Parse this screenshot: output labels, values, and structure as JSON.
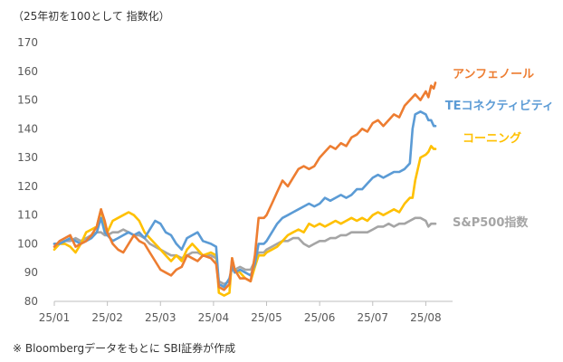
{
  "chart_data": {
    "type": "line",
    "subtitle": "（25年初を100として 指数化）",
    "note": "※ Bloombergデータをもとに SBI証券が作成",
    "ylim": [
      80,
      170
    ],
    "yticks": [
      80,
      90,
      100,
      110,
      120,
      130,
      140,
      150,
      160,
      170
    ],
    "xlim": [
      0,
      7.3
    ],
    "x_tick_labels": [
      "25/01",
      "25/02",
      "25/03",
      "25/04",
      "25/05",
      "25/06",
      "25/07",
      "25/08"
    ],
    "grid": false,
    "legend": "inline labels at line ends",
    "series": [
      {
        "name": "アンフェノール",
        "color": "#ED7D31",
        "points": [
          [
            0.0,
            99
          ],
          [
            0.1,
            101
          ],
          [
            0.2,
            102
          ],
          [
            0.3,
            103
          ],
          [
            0.4,
            99
          ],
          [
            0.5,
            100
          ],
          [
            0.6,
            101
          ],
          [
            0.7,
            103
          ],
          [
            0.8,
            106
          ],
          [
            0.88,
            112
          ],
          [
            0.95,
            108
          ],
          [
            1.0,
            104
          ],
          [
            1.1,
            100
          ],
          [
            1.2,
            98
          ],
          [
            1.3,
            97
          ],
          [
            1.4,
            100
          ],
          [
            1.5,
            103
          ],
          [
            1.6,
            101
          ],
          [
            1.7,
            100
          ],
          [
            1.8,
            97
          ],
          [
            1.9,
            94
          ],
          [
            2.0,
            91
          ],
          [
            2.1,
            90
          ],
          [
            2.2,
            89
          ],
          [
            2.3,
            91
          ],
          [
            2.4,
            92
          ],
          [
            2.5,
            96
          ],
          [
            2.6,
            95
          ],
          [
            2.7,
            94
          ],
          [
            2.8,
            96
          ],
          [
            2.95,
            95
          ],
          [
            3.05,
            93
          ],
          [
            3.1,
            85
          ],
          [
            3.2,
            84
          ],
          [
            3.3,
            86
          ],
          [
            3.35,
            95
          ],
          [
            3.4,
            91
          ],
          [
            3.5,
            88
          ],
          [
            3.6,
            88
          ],
          [
            3.7,
            87
          ],
          [
            3.78,
            96
          ],
          [
            3.85,
            109
          ],
          [
            3.95,
            109
          ],
          [
            4.0,
            110
          ],
          [
            4.1,
            114
          ],
          [
            4.2,
            118
          ],
          [
            4.3,
            122
          ],
          [
            4.4,
            120
          ],
          [
            4.5,
            123
          ],
          [
            4.6,
            126
          ],
          [
            4.7,
            127
          ],
          [
            4.8,
            126
          ],
          [
            4.9,
            127
          ],
          [
            5.0,
            130
          ],
          [
            5.1,
            132
          ],
          [
            5.2,
            134
          ],
          [
            5.3,
            133
          ],
          [
            5.4,
            135
          ],
          [
            5.5,
            134
          ],
          [
            5.6,
            137
          ],
          [
            5.7,
            138
          ],
          [
            5.8,
            140
          ],
          [
            5.9,
            139
          ],
          [
            6.0,
            142
          ],
          [
            6.1,
            143
          ],
          [
            6.2,
            141
          ],
          [
            6.3,
            143
          ],
          [
            6.4,
            145
          ],
          [
            6.5,
            144
          ],
          [
            6.6,
            148
          ],
          [
            6.7,
            150
          ],
          [
            6.8,
            152
          ],
          [
            6.9,
            150
          ],
          [
            7.0,
            153
          ],
          [
            7.05,
            151
          ],
          [
            7.1,
            155
          ],
          [
            7.15,
            154
          ],
          [
            7.18,
            156
          ]
        ]
      },
      {
        "name": "TEコネクティビティ",
        "color": "#5B9BD5",
        "points": [
          [
            0.0,
            100
          ],
          [
            0.1,
            100
          ],
          [
            0.2,
            101
          ],
          [
            0.3,
            102
          ],
          [
            0.4,
            101
          ],
          [
            0.5,
            100
          ],
          [
            0.6,
            101
          ],
          [
            0.7,
            102
          ],
          [
            0.8,
            104
          ],
          [
            0.88,
            109
          ],
          [
            0.95,
            104
          ],
          [
            1.0,
            103
          ],
          [
            1.1,
            101
          ],
          [
            1.2,
            102
          ],
          [
            1.3,
            103
          ],
          [
            1.4,
            104
          ],
          [
            1.5,
            103
          ],
          [
            1.6,
            104
          ],
          [
            1.7,
            102
          ],
          [
            1.8,
            105
          ],
          [
            1.9,
            108
          ],
          [
            2.0,
            107
          ],
          [
            2.1,
            104
          ],
          [
            2.2,
            103
          ],
          [
            2.3,
            100
          ],
          [
            2.4,
            98
          ],
          [
            2.5,
            102
          ],
          [
            2.6,
            103
          ],
          [
            2.7,
            104
          ],
          [
            2.8,
            101
          ],
          [
            2.95,
            100
          ],
          [
            3.05,
            99
          ],
          [
            3.1,
            86
          ],
          [
            3.2,
            85
          ],
          [
            3.3,
            88
          ],
          [
            3.35,
            92
          ],
          [
            3.4,
            90
          ],
          [
            3.5,
            91
          ],
          [
            3.6,
            90
          ],
          [
            3.7,
            89
          ],
          [
            3.78,
            93
          ],
          [
            3.85,
            100
          ],
          [
            3.95,
            100
          ],
          [
            4.0,
            101
          ],
          [
            4.1,
            104
          ],
          [
            4.2,
            107
          ],
          [
            4.3,
            109
          ],
          [
            4.4,
            110
          ],
          [
            4.5,
            111
          ],
          [
            4.6,
            112
          ],
          [
            4.7,
            113
          ],
          [
            4.8,
            114
          ],
          [
            4.9,
            113
          ],
          [
            5.0,
            114
          ],
          [
            5.1,
            116
          ],
          [
            5.2,
            115
          ],
          [
            5.3,
            116
          ],
          [
            5.4,
            117
          ],
          [
            5.5,
            116
          ],
          [
            5.6,
            117
          ],
          [
            5.7,
            119
          ],
          [
            5.8,
            119
          ],
          [
            5.9,
            121
          ],
          [
            6.0,
            123
          ],
          [
            6.1,
            124
          ],
          [
            6.2,
            123
          ],
          [
            6.3,
            124
          ],
          [
            6.4,
            125
          ],
          [
            6.5,
            125
          ],
          [
            6.6,
            126
          ],
          [
            6.7,
            128
          ],
          [
            6.75,
            140
          ],
          [
            6.8,
            145
          ],
          [
            6.9,
            146
          ],
          [
            7.0,
            145
          ],
          [
            7.05,
            143
          ],
          [
            7.1,
            143
          ],
          [
            7.15,
            141
          ],
          [
            7.18,
            141
          ]
        ]
      },
      {
        "name": "コーニング",
        "color": "#FFC000",
        "points": [
          [
            0.0,
            98
          ],
          [
            0.1,
            100
          ],
          [
            0.2,
            100
          ],
          [
            0.3,
            99
          ],
          [
            0.4,
            97
          ],
          [
            0.5,
            100
          ],
          [
            0.6,
            104
          ],
          [
            0.7,
            105
          ],
          [
            0.8,
            106
          ],
          [
            0.88,
            112
          ],
          [
            0.95,
            105
          ],
          [
            1.0,
            104
          ],
          [
            1.1,
            108
          ],
          [
            1.2,
            109
          ],
          [
            1.3,
            110
          ],
          [
            1.4,
            111
          ],
          [
            1.5,
            110
          ],
          [
            1.6,
            108
          ],
          [
            1.7,
            104
          ],
          [
            1.8,
            102
          ],
          [
            1.9,
            100
          ],
          [
            2.0,
            98
          ],
          [
            2.1,
            96
          ],
          [
            2.2,
            94
          ],
          [
            2.3,
            96
          ],
          [
            2.4,
            94
          ],
          [
            2.5,
            98
          ],
          [
            2.6,
            100
          ],
          [
            2.7,
            98
          ],
          [
            2.8,
            96
          ],
          [
            2.95,
            97
          ],
          [
            3.05,
            96
          ],
          [
            3.1,
            83
          ],
          [
            3.2,
            82
          ],
          [
            3.3,
            83
          ],
          [
            3.35,
            95
          ],
          [
            3.4,
            91
          ],
          [
            3.5,
            90
          ],
          [
            3.6,
            88
          ],
          [
            3.7,
            87
          ],
          [
            3.78,
            92
          ],
          [
            3.85,
            96
          ],
          [
            3.95,
            96
          ],
          [
            4.0,
            97
          ],
          [
            4.1,
            98
          ],
          [
            4.2,
            99
          ],
          [
            4.3,
            101
          ],
          [
            4.4,
            103
          ],
          [
            4.5,
            104
          ],
          [
            4.6,
            105
          ],
          [
            4.7,
            104
          ],
          [
            4.8,
            107
          ],
          [
            4.9,
            106
          ],
          [
            5.0,
            107
          ],
          [
            5.1,
            106
          ],
          [
            5.2,
            107
          ],
          [
            5.3,
            108
          ],
          [
            5.4,
            107
          ],
          [
            5.5,
            108
          ],
          [
            5.6,
            109
          ],
          [
            5.7,
            108
          ],
          [
            5.8,
            109
          ],
          [
            5.9,
            108
          ],
          [
            6.0,
            110
          ],
          [
            6.1,
            111
          ],
          [
            6.2,
            110
          ],
          [
            6.3,
            111
          ],
          [
            6.4,
            112
          ],
          [
            6.5,
            111
          ],
          [
            6.6,
            114
          ],
          [
            6.7,
            116
          ],
          [
            6.75,
            116
          ],
          [
            6.8,
            122
          ],
          [
            6.9,
            130
          ],
          [
            7.0,
            131
          ],
          [
            7.05,
            132
          ],
          [
            7.1,
            134
          ],
          [
            7.15,
            133
          ],
          [
            7.18,
            133
          ]
        ]
      },
      {
        "name": "S&P500指数",
        "color": "#A5A5A5",
        "points": [
          [
            0.0,
            100
          ],
          [
            0.1,
            100
          ],
          [
            0.2,
            101
          ],
          [
            0.3,
            101
          ],
          [
            0.4,
            102
          ],
          [
            0.5,
            101
          ],
          [
            0.6,
            102
          ],
          [
            0.7,
            103
          ],
          [
            0.8,
            104
          ],
          [
            0.88,
            104
          ],
          [
            0.95,
            103
          ],
          [
            1.0,
            103
          ],
          [
            1.1,
            104
          ],
          [
            1.2,
            104
          ],
          [
            1.3,
            105
          ],
          [
            1.4,
            104
          ],
          [
            1.5,
            103
          ],
          [
            1.6,
            103
          ],
          [
            1.7,
            102
          ],
          [
            1.8,
            100
          ],
          [
            1.9,
            99
          ],
          [
            2.0,
            98
          ],
          [
            2.1,
            97
          ],
          [
            2.2,
            96
          ],
          [
            2.3,
            96
          ],
          [
            2.4,
            95
          ],
          [
            2.5,
            96
          ],
          [
            2.6,
            97
          ],
          [
            2.7,
            97
          ],
          [
            2.8,
            96
          ],
          [
            2.95,
            96
          ],
          [
            3.05,
            95
          ],
          [
            3.1,
            87
          ],
          [
            3.2,
            86
          ],
          [
            3.3,
            87
          ],
          [
            3.35,
            92
          ],
          [
            3.4,
            91
          ],
          [
            3.5,
            92
          ],
          [
            3.6,
            91
          ],
          [
            3.7,
            91
          ],
          [
            3.78,
            94
          ],
          [
            3.85,
            97
          ],
          [
            3.95,
            97
          ],
          [
            4.0,
            98
          ],
          [
            4.1,
            99
          ],
          [
            4.2,
            100
          ],
          [
            4.3,
            101
          ],
          [
            4.4,
            101
          ],
          [
            4.5,
            102
          ],
          [
            4.6,
            102
          ],
          [
            4.7,
            100
          ],
          [
            4.8,
            99
          ],
          [
            4.9,
            100
          ],
          [
            5.0,
            101
          ],
          [
            5.1,
            101
          ],
          [
            5.2,
            102
          ],
          [
            5.3,
            102
          ],
          [
            5.4,
            103
          ],
          [
            5.5,
            103
          ],
          [
            5.6,
            104
          ],
          [
            5.7,
            104
          ],
          [
            5.8,
            104
          ],
          [
            5.9,
            104
          ],
          [
            6.0,
            105
          ],
          [
            6.1,
            106
          ],
          [
            6.2,
            106
          ],
          [
            6.3,
            107
          ],
          [
            6.4,
            106
          ],
          [
            6.5,
            107
          ],
          [
            6.6,
            107
          ],
          [
            6.7,
            108
          ],
          [
            6.8,
            109
          ],
          [
            6.9,
            109
          ],
          [
            7.0,
            108
          ],
          [
            7.05,
            106
          ],
          [
            7.1,
            107
          ],
          [
            7.15,
            107
          ],
          [
            7.18,
            107
          ]
        ]
      }
    ]
  }
}
